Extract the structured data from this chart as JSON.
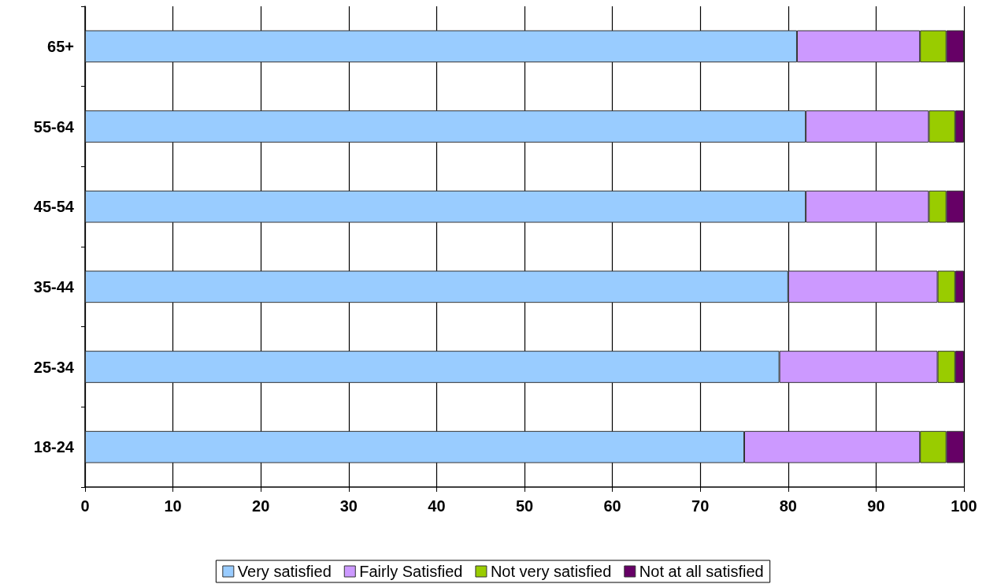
{
  "chart_data": {
    "type": "bar",
    "orientation": "horizontal",
    "stacked": true,
    "categories": [
      "65+",
      "55-64",
      "45-54",
      "35-44",
      "25-34",
      "18-24"
    ],
    "series": [
      {
        "name": "Very satisfied",
        "color": "#99ccff",
        "values": [
          81,
          82,
          82,
          80,
          79,
          75
        ]
      },
      {
        "name": "Fairly Satisfied",
        "color": "#cc99ff",
        "values": [
          14,
          14,
          14,
          17,
          18,
          20
        ]
      },
      {
        "name": "Not very satisfied",
        "color": "#99cc00",
        "values": [
          3,
          3,
          2,
          2,
          2,
          3
        ]
      },
      {
        "name": "Not at all satisfied",
        "color": "#660066",
        "values": [
          2,
          1,
          2,
          1,
          1,
          2
        ]
      }
    ],
    "xlim": [
      0,
      100
    ],
    "xticks": [
      0,
      10,
      20,
      30,
      40,
      50,
      60,
      70,
      80,
      90,
      100
    ],
    "grid": "x",
    "legend": "bottom"
  }
}
